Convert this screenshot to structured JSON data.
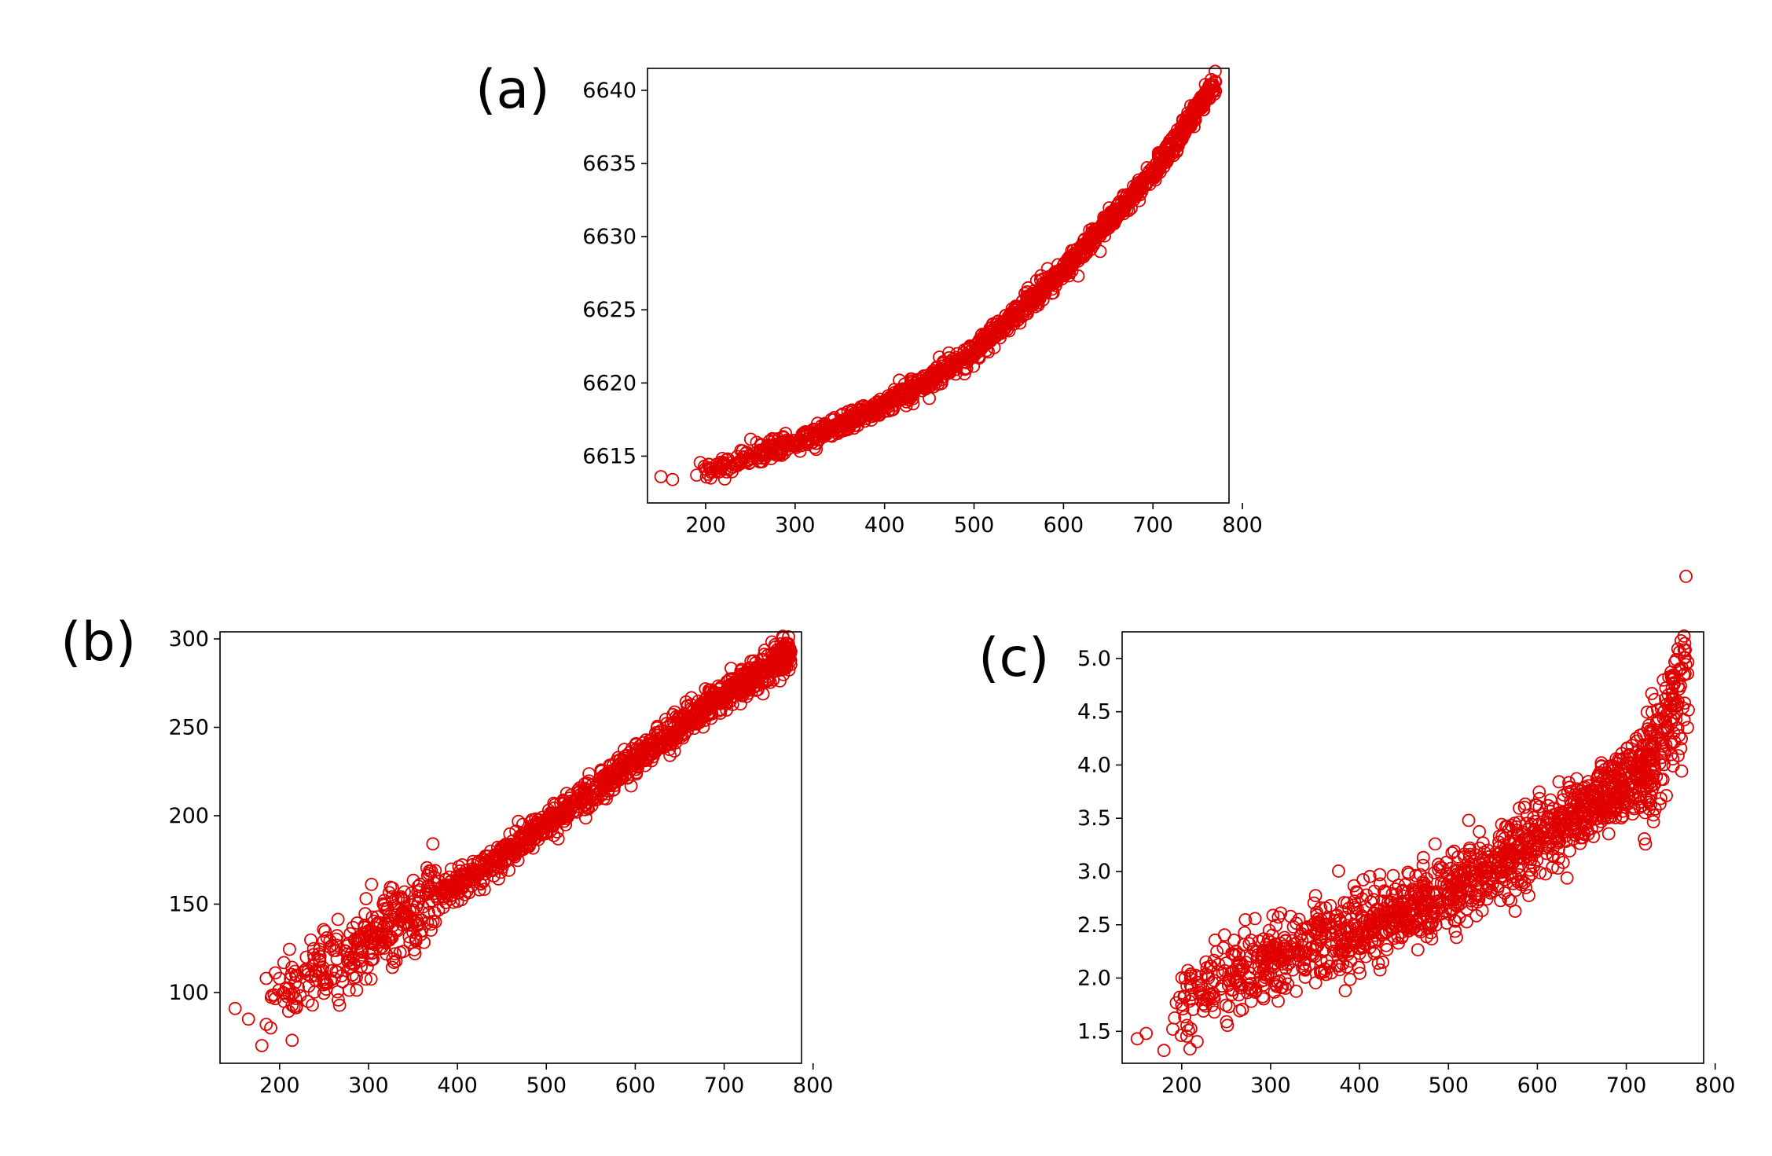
{
  "figure": {
    "marker_color": "#ff0000",
    "marker_edge": "#e00000"
  },
  "chart_data": [
    {
      "id": "a",
      "type": "scatter",
      "panel_label": "(a)",
      "title": "",
      "xlabel": "",
      "ylabel": "",
      "xlim": [
        135,
        785
      ],
      "ylim": [
        6611.8,
        6641.5
      ],
      "xticks": [
        200,
        300,
        400,
        500,
        600,
        700,
        800
      ],
      "yticks": [
        6615,
        6620,
        6625,
        6630,
        6635,
        6640
      ],
      "ytick_labels": [
        "6615",
        "6620",
        "6625",
        "6630",
        "6635",
        "6640"
      ],
      "trend": {
        "x": [
          150,
          200,
          300,
          400,
          500,
          600,
          700,
          770
        ],
        "y": [
          6613.6,
          6614.0,
          6615.9,
          6618.5,
          6622.1,
          6627.7,
          6634.3,
          6640.6
        ]
      },
      "noise": 0.35,
      "n_points": 1400,
      "sample_points": [
        [
          150,
          6613.6
        ],
        [
          163,
          6613.4
        ],
        [
          190,
          6613.7
        ],
        [
          212,
          6614.0
        ],
        [
          235,
          6614.4
        ],
        [
          770,
          6640.6
        ]
      ]
    },
    {
      "id": "b",
      "type": "scatter",
      "panel_label": "(b)",
      "title": "",
      "xlabel": "",
      "ylabel": "",
      "xlim": [
        133,
        787
      ],
      "ylim": [
        60,
        304
      ],
      "xticks": [
        200,
        300,
        400,
        500,
        600,
        700,
        800
      ],
      "yticks": [
        100,
        150,
        200,
        250,
        300
      ],
      "ytick_labels": [
        "100",
        "150",
        "200",
        "250",
        "300"
      ],
      "trend": {
        "x": [
          150,
          200,
          300,
          400,
          500,
          600,
          700,
          775
        ],
        "y": [
          87,
          97,
          130,
          160,
          195,
          232,
          268,
          293
        ]
      },
      "noise": 4.5,
      "n_points": 1400,
      "sample_points": [
        [
          150,
          91
        ],
        [
          165,
          85
        ],
        [
          180,
          70
        ],
        [
          185,
          82
        ],
        [
          190,
          80
        ],
        [
          185,
          108
        ],
        [
          200,
          108
        ],
        [
          205,
          95
        ],
        [
          230,
          120
        ],
        [
          232,
          95
        ],
        [
          775,
          293
        ]
      ]
    },
    {
      "id": "c",
      "type": "scatter",
      "panel_label": "(c)",
      "title": "",
      "xlabel": "",
      "ylabel": "",
      "xlim": [
        133,
        787
      ],
      "ylim": [
        1.2,
        5.25
      ],
      "xticks": [
        200,
        300,
        400,
        500,
        600,
        700,
        800
      ],
      "yticks": [
        1.5,
        2.0,
        2.5,
        3.0,
        3.5,
        4.0,
        4.5,
        5.0
      ],
      "ytick_labels": [
        "1.5",
        "2.0",
        "2.5",
        "3.0",
        "3.5",
        "4.0",
        "4.5",
        "5.0"
      ],
      "trend": {
        "x": [
          150,
          200,
          300,
          400,
          500,
          600,
          700,
          740,
          770
        ],
        "y": [
          1.45,
          1.75,
          2.2,
          2.45,
          2.8,
          3.3,
          3.8,
          4.15,
          4.95
        ]
      },
      "noise": 0.18,
      "n_points": 1500,
      "sample_points": [
        [
          150,
          1.43
        ],
        [
          160,
          1.48
        ],
        [
          180,
          1.32
        ],
        [
          190,
          1.52
        ],
        [
          200,
          1.75
        ],
        [
          210,
          1.93
        ],
        [
          765,
          5.08
        ],
        [
          760,
          5.06
        ]
      ]
    }
  ]
}
